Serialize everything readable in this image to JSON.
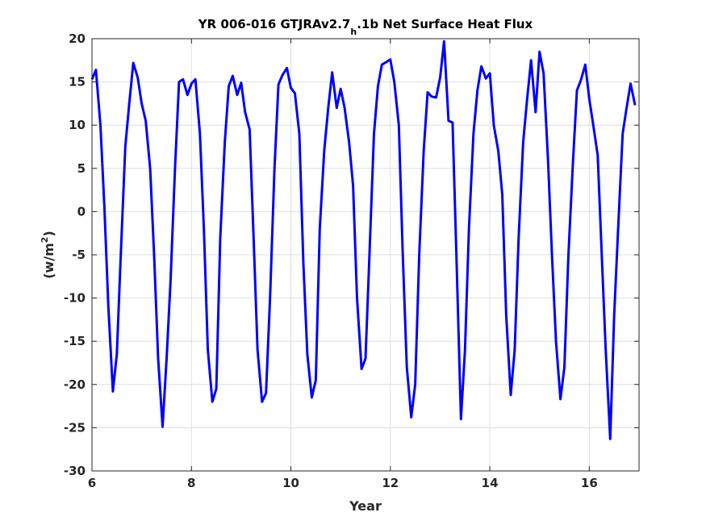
{
  "chart_data": {
    "type": "line",
    "title": {
      "prefix": "YR 006-016 GTJRAv2.7",
      "subscript": "h",
      "suffix": ".1b Net Surface Heat Flux"
    },
    "xlabel": "Year",
    "ylabel": {
      "prefix": "(w/m",
      "superscript": "2",
      "suffix": ")"
    },
    "xlim": [
      6,
      17
    ],
    "ylim": [
      -30,
      20
    ],
    "xticks": [
      6,
      8,
      10,
      12,
      14,
      16
    ],
    "yticks": [
      -30,
      -25,
      -20,
      -15,
      -10,
      -5,
      0,
      5,
      10,
      15,
      20
    ],
    "grid": true,
    "series": [
      {
        "color": "#0000ff",
        "x": [
          6.0,
          6.08,
          6.17,
          6.25,
          6.33,
          6.42,
          6.5,
          6.58,
          6.67,
          6.75,
          6.83,
          6.92,
          7.0,
          7.08,
          7.17,
          7.25,
          7.33,
          7.42,
          7.5,
          7.58,
          7.67,
          7.75,
          7.83,
          7.92,
          8.0,
          8.08,
          8.17,
          8.25,
          8.33,
          8.42,
          8.5,
          8.58,
          8.67,
          8.75,
          8.83,
          8.92,
          9.0,
          9.08,
          9.17,
          9.25,
          9.33,
          9.42,
          9.5,
          9.58,
          9.67,
          9.75,
          9.83,
          9.92,
          10.0,
          10.08,
          10.17,
          10.25,
          10.33,
          10.42,
          10.5,
          10.58,
          10.67,
          10.75,
          10.83,
          10.92,
          11.0,
          11.08,
          11.17,
          11.25,
          11.33,
          11.42,
          11.5,
          11.58,
          11.67,
          11.75,
          11.83,
          11.92,
          12.0,
          12.08,
          12.17,
          12.25,
          12.33,
          12.42,
          12.5,
          12.58,
          12.67,
          12.75,
          12.83,
          12.92,
          13.0,
          13.08,
          13.17,
          13.25,
          13.33,
          13.42,
          13.5,
          13.58,
          13.67,
          13.75,
          13.83,
          13.92,
          14.0,
          14.08,
          14.17,
          14.25,
          14.33,
          14.42,
          14.5,
          14.58,
          14.67,
          14.75,
          14.83,
          14.92,
          15.0,
          15.08,
          15.17,
          15.25,
          15.33,
          15.42,
          15.5,
          15.58,
          15.67,
          15.75,
          15.83,
          15.92,
          16.0,
          16.08,
          16.17,
          16.25,
          16.33,
          16.42,
          16.5,
          16.58,
          16.67,
          16.75,
          16.83,
          16.92
        ],
        "y": [
          15.3,
          16.4,
          10.0,
          0.5,
          -11.0,
          -20.8,
          -16.5,
          -5.0,
          7.5,
          12.5,
          17.2,
          15.5,
          12.5,
          10.5,
          5.0,
          -5.0,
          -17.0,
          -24.9,
          -17.0,
          -8.0,
          5.0,
          15.0,
          15.3,
          13.5,
          14.8,
          15.3,
          9.0,
          -2.0,
          -16.0,
          -22.0,
          -20.5,
          -3.0,
          8.0,
          14.5,
          15.7,
          13.5,
          14.9,
          11.5,
          9.5,
          -3.0,
          -16.0,
          -22.0,
          -21.0,
          -10.0,
          5.0,
          14.7,
          15.8,
          16.6,
          14.3,
          13.7,
          9.0,
          -6.0,
          -16.5,
          -21.5,
          -19.5,
          -2.0,
          7.0,
          12.0,
          16.1,
          12.0,
          14.2,
          12.0,
          8.0,
          3.0,
          -10.0,
          -18.2,
          -17.0,
          -5.0,
          9.0,
          14.5,
          17.0,
          17.3,
          17.6,
          15.0,
          10.0,
          -5.0,
          -18.0,
          -23.8,
          -20.0,
          -5.0,
          7.0,
          13.8,
          13.3,
          13.2,
          15.5,
          19.7,
          10.5,
          10.3,
          -5.5,
          -24.0,
          -16.0,
          -2.0,
          9.0,
          14.0,
          16.8,
          15.4,
          16.0,
          10.0,
          7.0,
          2.0,
          -12.0,
          -21.2,
          -16.0,
          -3.0,
          8.0,
          13.0,
          17.5,
          11.5,
          18.5,
          16.0,
          6.0,
          -5.0,
          -15.0,
          -21.7,
          -18.0,
          -5.0,
          5.5,
          14.0,
          15.2,
          17.0,
          13.0,
          10.0,
          6.5,
          -5.0,
          -16.0,
          -26.3,
          -12.0,
          -2.0,
          9.0,
          12.0,
          14.8,
          12.3
        ]
      }
    ]
  }
}
